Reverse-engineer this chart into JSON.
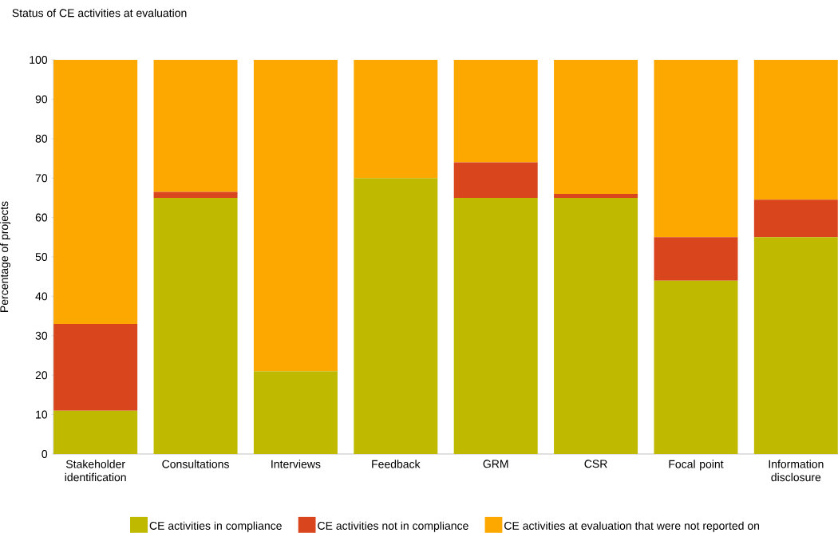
{
  "chart_data": {
    "type": "bar",
    "stacked": true,
    "title": "Status of CE activities at evaluation",
    "ylabel": "Percentage of projects",
    "categories": [
      "Stakeholder identification",
      "Consultations",
      "Interviews",
      "Feedback",
      "GRM",
      "CSR",
      "Focal point",
      "Information disclosure"
    ],
    "series": [
      {
        "name": "CE activities in compliance",
        "color": "#bfba00",
        "values": [
          11,
          65,
          21,
          70,
          65,
          65,
          44,
          55
        ]
      },
      {
        "name": "CE activities not in compliance",
        "color": "#d9461e",
        "values": [
          22,
          1.5,
          0,
          0,
          9,
          1,
          11,
          9.5
        ]
      },
      {
        "name": "CE activities at evaluation that were not reported on",
        "color": "#fca800",
        "values": [
          67,
          33.5,
          79,
          30,
          26,
          34,
          45,
          35.5
        ]
      }
    ],
    "ylim": [
      0,
      100
    ],
    "yticks": [
      0,
      10,
      20,
      30,
      40,
      50,
      60,
      70,
      80,
      90,
      100
    ],
    "grid": false,
    "legend": "bottom"
  }
}
